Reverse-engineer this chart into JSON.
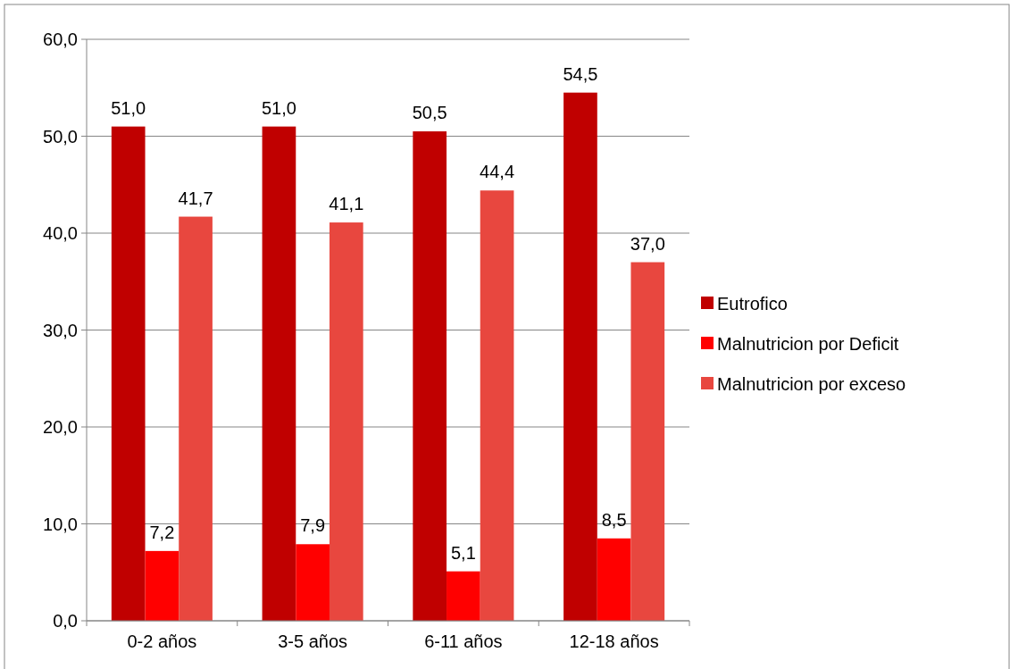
{
  "chart_data": {
    "type": "bar",
    "categories": [
      "0-2 años",
      "3-5 años",
      "6-11 años",
      "12-18 años"
    ],
    "series": [
      {
        "name": "Eutrofico",
        "color": "#c00000",
        "values": [
          51.0,
          51.0,
          50.5,
          54.5
        ],
        "value_labels": [
          "51,0",
          "51,0",
          "50,5",
          "54,5"
        ]
      },
      {
        "name": "Malnutricion por Deficit",
        "color": "#ff0000",
        "values": [
          7.2,
          7.9,
          5.1,
          8.5
        ],
        "value_labels": [
          "7,2",
          "7,9",
          "5,1",
          "8,5"
        ]
      },
      {
        "name": "Malnutricion por exceso",
        "color": "#e8473f",
        "values": [
          41.7,
          41.1,
          44.4,
          37.0
        ],
        "value_labels": [
          "41,7",
          "41,1",
          "44,4",
          "37,0"
        ]
      }
    ],
    "ylim": [
      0,
      60
    ],
    "yticks": [
      {
        "value": 0,
        "label": "0,0"
      },
      {
        "value": 10,
        "label": "10,0"
      },
      {
        "value": 20,
        "label": "20,0"
      },
      {
        "value": 30,
        "label": "30,0"
      },
      {
        "value": 40,
        "label": "40,0"
      },
      {
        "value": 50,
        "label": "50,0"
      },
      {
        "value": 60,
        "label": "60,0"
      }
    ],
    "grid": "y",
    "legend": "right"
  }
}
